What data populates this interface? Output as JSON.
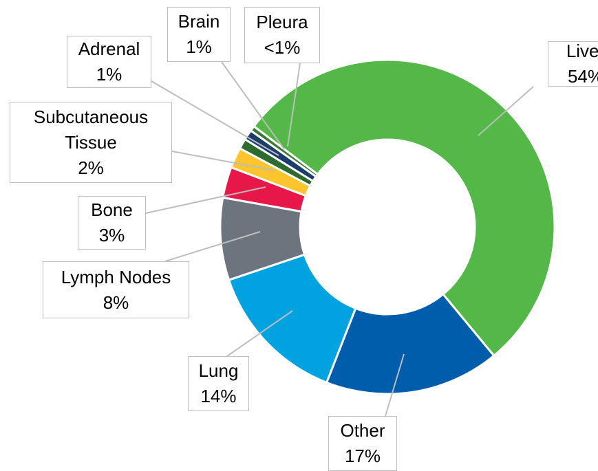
{
  "chart_data": {
    "type": "donut",
    "categories": [
      "Liver",
      "Other",
      "Lung",
      "Lymph Nodes",
      "Bone",
      "Subcutaneous Tissue",
      "Adrenal",
      "Brain",
      "Pleura"
    ],
    "values": [
      54,
      17,
      14,
      8,
      3,
      2,
      1,
      1,
      0.5
    ],
    "value_labels": [
      "54%",
      "17%",
      "14%",
      "8%",
      "3%",
      "2%",
      "1%",
      "1%",
      "<1%"
    ],
    "colors": [
      "#54b848",
      "#005dab",
      "#00a3e0",
      "#6c757d",
      "#e8174a",
      "#fcc52d",
      "#2e6b30",
      "#1c3d6b",
      "#3d7a3a"
    ]
  }
}
